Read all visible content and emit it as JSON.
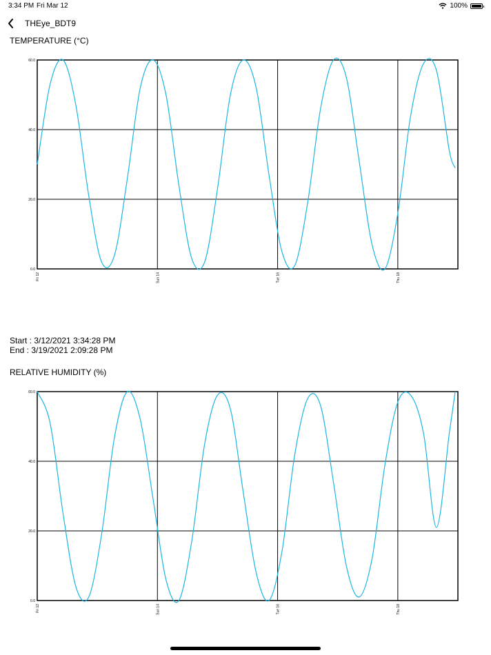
{
  "status_bar": {
    "time": "3:34 PM",
    "date": "Fri Mar 12",
    "battery": "100%",
    "battery_level": 1.0
  },
  "nav": {
    "title": "THEye_BDT9",
    "back_icon": "chevron-left-icon"
  },
  "date_range": {
    "start": "Start : 3/12/2021 3:34:28 PM",
    "end": "End : 3/19/2021 2:09:28 PM"
  },
  "colors": {
    "series": "#1ab5e3",
    "grid": "#000000",
    "background": "#ffffff"
  },
  "chart_data": [
    {
      "type": "line",
      "title": "TEMPERATURE (°C)",
      "ylim": [
        0,
        60
      ],
      "y_ticks": [
        "0.0",
        "20.0",
        "40.0",
        "60.0"
      ],
      "y_tick_values": [
        0,
        20,
        40,
        60
      ],
      "x_ticks": [
        "Fri 12",
        "Sun 14",
        "Tue 16",
        "Thu 18"
      ],
      "x_tick_values": [
        0,
        2,
        4,
        6
      ],
      "xlim": [
        0,
        7
      ],
      "grid": true,
      "series": [
        {
          "x": [
            0,
            0.214,
            0.429,
            0.643,
            0.857,
            1.071,
            1.286,
            1.5,
            1.714,
            1.929,
            2.143,
            2.357,
            2.571,
            2.786,
            3.0,
            3.214,
            3.429,
            3.643,
            3.857,
            4.071,
            4.286,
            4.5,
            4.714,
            4.929,
            5.143,
            5.357,
            5.571,
            5.786,
            6.0,
            6.214,
            6.429,
            6.643,
            6.857,
            6.955
          ],
          "y": [
            30,
            53,
            60,
            47,
            21,
            2,
            4,
            26,
            52,
            60,
            50,
            24,
            3,
            2,
            23,
            50,
            60,
            52,
            27,
            5,
            1,
            19,
            46,
            60,
            55,
            31,
            7,
            0,
            16,
            44,
            59,
            57,
            34,
            29
          ]
        }
      ]
    },
    {
      "type": "line",
      "title": "RELATIVE HUMIDITY (%)",
      "ylim": [
        0,
        60
      ],
      "y_ticks": [
        "0.0",
        "20.0",
        "40.0",
        "60.0"
      ],
      "y_tick_values": [
        0,
        20,
        40,
        60
      ],
      "x_ticks": [
        "Fri 12",
        "Sun 14",
        "Tue 16",
        "Thu 18"
      ],
      "x_tick_values": [
        0,
        2,
        4,
        6
      ],
      "xlim": [
        0,
        7
      ],
      "grid": true,
      "series": [
        {
          "x": [
            0,
            0.214,
            0.429,
            0.643,
            0.857,
            1.071,
            1.286,
            1.5,
            1.714,
            1.929,
            2.143,
            2.357,
            2.571,
            2.786,
            3.0,
            3.214,
            3.429,
            3.643,
            3.857,
            4.071,
            4.286,
            4.5,
            4.714,
            4.929,
            5.143,
            5.357,
            5.571,
            5.786,
            6.0,
            6.214,
            6.429,
            6.643,
            6.857,
            6.955
          ],
          "y": [
            60,
            51,
            25,
            4,
            1,
            19,
            47,
            60,
            52,
            29,
            6,
            0,
            17,
            45,
            59,
            55,
            31,
            8,
            0,
            14,
            42,
            58,
            56,
            34,
            10,
            1,
            12,
            39,
            57,
            59,
            48,
            21,
            48,
            60
          ]
        }
      ]
    }
  ]
}
